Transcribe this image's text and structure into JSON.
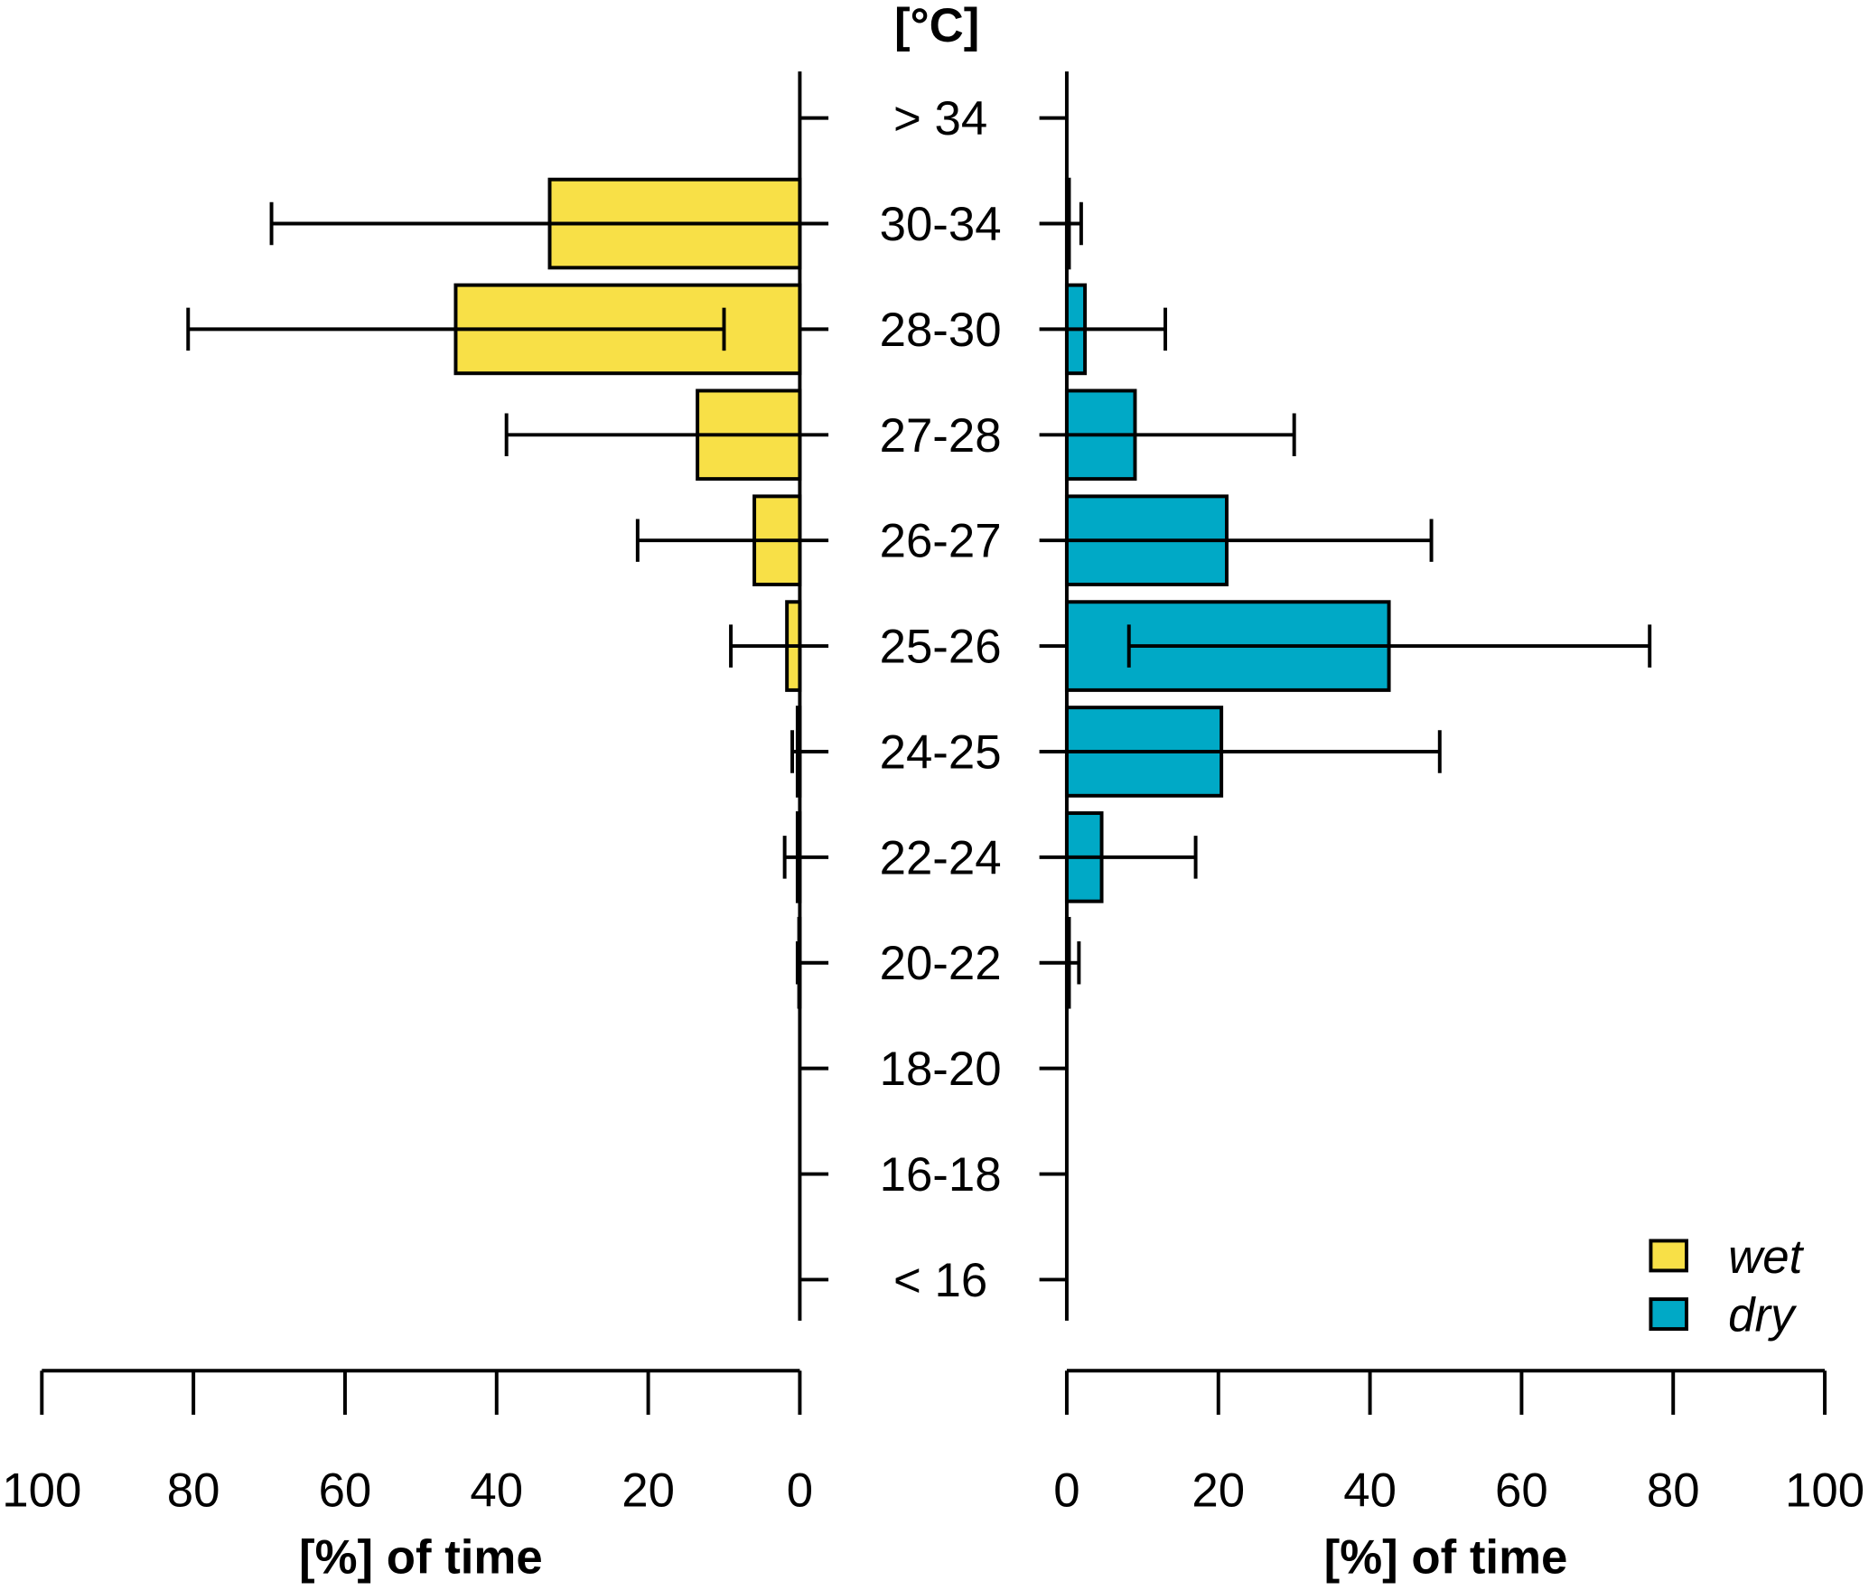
{
  "chart_data": {
    "type": "bar",
    "orientation": "horizontal-back-to-back",
    "title": "[°C]",
    "categories": [
      "> 34",
      "30-34",
      "28-30",
      "27-28",
      "26-27",
      "25-26",
      "24-25",
      "22-24",
      "20-22",
      "18-20",
      "16-18",
      "< 16"
    ],
    "series": [
      {
        "name": "wet",
        "color": "#F8E047",
        "side": "left",
        "values": [
          0,
          33,
          45.4,
          13.5,
          6,
          1.7,
          0.3,
          0.3,
          0.1,
          0,
          0,
          0
        ],
        "error_low": [
          0,
          0,
          10,
          0,
          0,
          0,
          0,
          0,
          0,
          0,
          0,
          0
        ],
        "error_high": [
          0,
          69.7,
          80.7,
          38.7,
          21.4,
          9.1,
          1,
          2,
          0.3,
          0,
          0,
          0
        ]
      },
      {
        "name": "dry",
        "color": "#00A9C6",
        "side": "right",
        "values": [
          0,
          0.3,
          2.4,
          9,
          21.1,
          42.5,
          20.4,
          4.6,
          0.3,
          0,
          0,
          0
        ],
        "error_low": [
          0,
          0,
          0,
          0,
          0,
          8.2,
          0,
          0,
          0,
          0,
          0,
          0
        ],
        "error_high": [
          0,
          1.9,
          13,
          30,
          48.1,
          76.9,
          49.2,
          17,
          1.6,
          0,
          0,
          0
        ]
      }
    ],
    "left_axis": {
      "label": "[%] of time",
      "ticks": [
        "100",
        "80",
        "60",
        "40",
        "20",
        "0"
      ],
      "range": [
        100,
        0
      ]
    },
    "right_axis": {
      "label": "[%] of time",
      "ticks": [
        "0",
        "20",
        "40",
        "60",
        "80",
        "100"
      ],
      "range": [
        0,
        100
      ]
    },
    "legend": {
      "position": "bottom-right",
      "entries": [
        "wet",
        "dry"
      ]
    }
  }
}
